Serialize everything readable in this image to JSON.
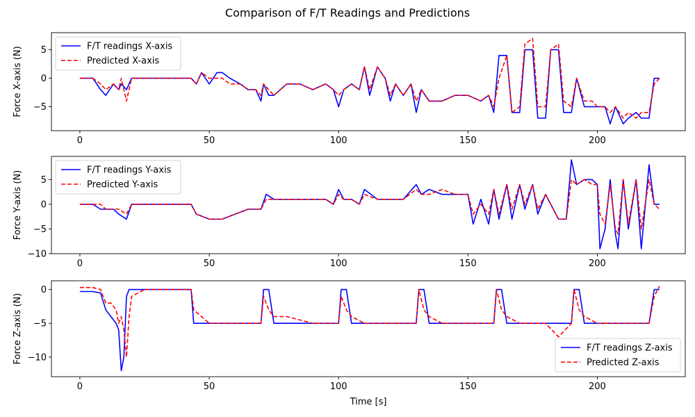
{
  "figure": {
    "title": "Comparison of F/T Readings and Predictions",
    "xlabel": "Time [s]"
  },
  "colors": {
    "measured": "#0000ff",
    "predicted": "#ff0000"
  },
  "chart_data": [
    {
      "type": "line",
      "id": "x",
      "title": "",
      "xlabel": "",
      "ylabel": "Force X-axis (N)",
      "xlim": [
        -11,
        234
      ],
      "ylim": [
        -9.2,
        8.0
      ],
      "xticks": [
        0,
        50,
        100,
        150,
        200
      ],
      "yticks": [
        5,
        0,
        -5
      ],
      "legend": "top-left",
      "grid": false,
      "series": [
        {
          "name": "F/T readings X-axis",
          "style": "solid",
          "x": [
            0,
            5,
            8,
            10,
            13,
            15,
            16,
            18,
            20,
            30,
            40,
            43,
            45,
            47,
            50,
            53,
            55,
            58,
            62,
            65,
            68,
            70,
            71,
            73,
            75,
            80,
            85,
            90,
            95,
            98,
            100,
            102,
            105,
            108,
            110,
            112,
            115,
            118,
            120,
            122,
            125,
            128,
            130,
            132,
            135,
            140,
            145,
            150,
            155,
            158,
            160,
            162,
            165,
            167,
            170,
            172,
            175,
            177,
            180,
            182,
            185,
            187,
            190,
            192,
            195,
            198,
            200,
            203,
            205,
            207,
            210,
            212,
            215,
            217,
            220,
            222,
            224
          ],
          "values": [
            0,
            0,
            -2,
            -3,
            -1,
            -2,
            -1,
            -2,
            0,
            0,
            0,
            0,
            -1,
            1,
            -1,
            1,
            1,
            0,
            -1,
            -2,
            -2,
            -4,
            -1,
            -3,
            -3,
            -1,
            -1,
            -2,
            -1,
            -2,
            -5,
            -2,
            -1,
            -2,
            2,
            -3,
            2,
            0,
            -4,
            -1,
            -3,
            -1,
            -6,
            -2,
            -4,
            -4,
            -3,
            -3,
            -4,
            -3,
            -6,
            4,
            4,
            -6,
            -6,
            5,
            5,
            -7,
            -7,
            5,
            5,
            -6,
            -6,
            0,
            -5,
            -5,
            -5,
            -5,
            -8,
            -5,
            -8,
            -7,
            -6,
            -7,
            -7,
            0,
            0
          ]
        },
        {
          "name": "Predicted X-axis",
          "style": "dashed",
          "x": [
            0,
            5,
            8,
            10,
            13,
            15,
            16,
            18,
            20,
            30,
            40,
            43,
            45,
            47,
            50,
            53,
            55,
            58,
            62,
            65,
            68,
            70,
            71,
            73,
            75,
            80,
            85,
            90,
            95,
            98,
            100,
            102,
            105,
            108,
            110,
            112,
            115,
            118,
            120,
            122,
            125,
            128,
            130,
            132,
            135,
            140,
            145,
            150,
            155,
            158,
            160,
            162,
            165,
            167,
            170,
            172,
            175,
            177,
            180,
            182,
            185,
            187,
            190,
            192,
            195,
            198,
            200,
            203,
            205,
            207,
            210,
            212,
            215,
            217,
            220,
            222,
            224
          ],
          "values": [
            0,
            0,
            -1,
            -2,
            -1,
            -2,
            0,
            -4,
            0,
            0,
            0,
            0,
            -1,
            1,
            0,
            0,
            0,
            -1,
            -1,
            -2,
            -2,
            -3,
            -1,
            -2,
            -3,
            -1,
            -1,
            -2,
            -1,
            -2,
            -3,
            -2,
            -1,
            -2,
            2,
            -2,
            2,
            0,
            -3,
            -1,
            -3,
            -1,
            -4,
            -2,
            -4,
            -4,
            -3,
            -3,
            -4,
            -3,
            -5,
            0,
            4,
            -6,
            -5,
            6,
            7,
            -5,
            -5,
            5,
            6,
            -4,
            -5,
            0,
            -4,
            -4,
            -5,
            -5,
            -6,
            -5,
            -7,
            -6,
            -7,
            -6,
            -6,
            -1,
            0
          ]
        }
      ]
    },
    {
      "type": "line",
      "id": "y",
      "title": "",
      "xlabel": "",
      "ylabel": "Force Y-axis (N)",
      "xlim": [
        -11,
        234
      ],
      "ylim": [
        -10,
        9.7
      ],
      "xticks": [
        0,
        50,
        100,
        150,
        200
      ],
      "yticks": [
        5,
        0,
        -5,
        -10
      ],
      "legend": "top-left",
      "grid": false,
      "series": [
        {
          "name": "F/T readings Y-axis",
          "style": "solid",
          "x": [
            0,
            5,
            8,
            10,
            13,
            15,
            18,
            20,
            30,
            40,
            43,
            45,
            50,
            55,
            60,
            65,
            70,
            72,
            75,
            80,
            85,
            90,
            95,
            98,
            100,
            102,
            105,
            108,
            110,
            115,
            120,
            125,
            130,
            132,
            135,
            140,
            145,
            150,
            152,
            155,
            158,
            160,
            162,
            165,
            167,
            170,
            172,
            175,
            177,
            180,
            185,
            188,
            190,
            192,
            195,
            198,
            200,
            201,
            203,
            205,
            207,
            208,
            210,
            212,
            215,
            217,
            220,
            222,
            224
          ],
          "values": [
            0,
            0,
            -1,
            -1,
            -1,
            -2,
            -3,
            0,
            0,
            0,
            0,
            -2,
            -3,
            -3,
            -2,
            -1,
            -1,
            2,
            1,
            1,
            1,
            1,
            1,
            0,
            3,
            1,
            1,
            0,
            3,
            1,
            1,
            1,
            4,
            2,
            3,
            2,
            2,
            2,
            -4,
            1,
            -4,
            3,
            -3,
            4,
            -3,
            4,
            -1,
            4,
            -2,
            2,
            -3,
            -3,
            9,
            4,
            5,
            5,
            4,
            -9,
            -5,
            5,
            -6,
            -9,
            5,
            -5,
            5,
            -9,
            8,
            0,
            0
          ]
        },
        {
          "name": "Predicted Y-axis",
          "style": "dashed",
          "x": [
            0,
            5,
            8,
            10,
            13,
            15,
            18,
            20,
            30,
            40,
            43,
            45,
            50,
            55,
            60,
            65,
            70,
            72,
            75,
            80,
            85,
            90,
            95,
            98,
            100,
            102,
            105,
            108,
            110,
            115,
            120,
            125,
            130,
            132,
            135,
            140,
            145,
            150,
            152,
            155,
            158,
            160,
            162,
            165,
            167,
            170,
            172,
            175,
            177,
            180,
            185,
            188,
            190,
            192,
            195,
            198,
            200,
            201,
            203,
            205,
            207,
            208,
            210,
            212,
            215,
            217,
            220,
            222,
            224
          ],
          "values": [
            0,
            0,
            0,
            -1,
            -1,
            -1,
            -2,
            0,
            0,
            0,
            0,
            -2,
            -3,
            -3,
            -2,
            -1,
            -1,
            1,
            1,
            1,
            1,
            1,
            1,
            0,
            2,
            1,
            1,
            0,
            2,
            1,
            1,
            1,
            3,
            2,
            2,
            3,
            2,
            2,
            -2,
            0,
            -2,
            3,
            -2,
            4,
            -1,
            4,
            0,
            4,
            -1,
            2,
            -3,
            -3,
            5,
            4,
            5,
            4,
            4,
            -2,
            -4,
            4,
            -5,
            -6,
            5,
            -4,
            5,
            -5,
            5,
            0,
            -1
          ]
        }
      ]
    },
    {
      "type": "line",
      "id": "z",
      "title": "",
      "xlabel": "Time [s]",
      "ylabel": "Force Z-axis (N)",
      "xlim": [
        -11,
        234
      ],
      "ylim": [
        -12.9,
        1.3
      ],
      "xticks": [
        0,
        50,
        100,
        150,
        200
      ],
      "yticks": [
        0,
        -5,
        -10
      ],
      "legend": "bottom-right",
      "grid": false,
      "series": [
        {
          "name": "F/T readings Z-axis",
          "style": "solid",
          "x": [
            0,
            5,
            8,
            10,
            12,
            14,
            15,
            16,
            17,
            18,
            19,
            20,
            25,
            30,
            40,
            43,
            44,
            50,
            55,
            60,
            68,
            70,
            71,
            73,
            75,
            80,
            90,
            100,
            101,
            103,
            105,
            110,
            120,
            125,
            130,
            131,
            133,
            135,
            140,
            150,
            155,
            160,
            161,
            163,
            165,
            170,
            180,
            185,
            190,
            191,
            193,
            195,
            200,
            210,
            215,
            220,
            222,
            224
          ],
          "values": [
            -0.3,
            -0.3,
            -0.5,
            -3,
            -4,
            -5,
            -6,
            -12,
            -10,
            -1,
            0,
            0,
            0,
            0,
            0,
            0,
            -5,
            -5,
            -5,
            -5,
            -5,
            -5,
            0,
            0,
            -5,
            -5,
            -5,
            -5,
            0,
            0,
            -5,
            -5,
            -5,
            -5,
            -5,
            0,
            0,
            -5,
            -5,
            -5,
            -5,
            -5,
            0,
            0,
            -5,
            -5,
            -5,
            -5,
            -5,
            0,
            0,
            -5,
            -5,
            -5,
            -5,
            -5,
            0,
            0
          ]
        },
        {
          "name": "Predicted Z-axis",
          "style": "dashed",
          "x": [
            0,
            5,
            8,
            10,
            12,
            14,
            15,
            16,
            17,
            18,
            19,
            20,
            25,
            30,
            40,
            43,
            44,
            50,
            55,
            60,
            68,
            70,
            71,
            73,
            75,
            80,
            90,
            100,
            101,
            103,
            105,
            110,
            120,
            125,
            130,
            131,
            133,
            135,
            140,
            150,
            155,
            160,
            161,
            163,
            165,
            170,
            180,
            185,
            190,
            191,
            193,
            195,
            200,
            210,
            215,
            220,
            222,
            224
          ],
          "values": [
            0.3,
            0.3,
            0,
            -2,
            -2,
            -3,
            -5,
            -4,
            -6,
            -10,
            -4,
            -1,
            0,
            0,
            0,
            0,
            -3,
            -5,
            -5,
            -5,
            -5,
            -5,
            -1,
            -3,
            -4,
            -4,
            -5,
            -5,
            -1,
            -3,
            -4,
            -5,
            -5,
            -5,
            -5,
            0,
            -3,
            -4,
            -5,
            -5,
            -5,
            -5,
            0,
            -3,
            -4,
            -5,
            -5,
            -7,
            -5,
            0,
            -3,
            -4,
            -5,
            -5,
            -5,
            -5,
            -1,
            0.5
          ]
        }
      ]
    }
  ]
}
